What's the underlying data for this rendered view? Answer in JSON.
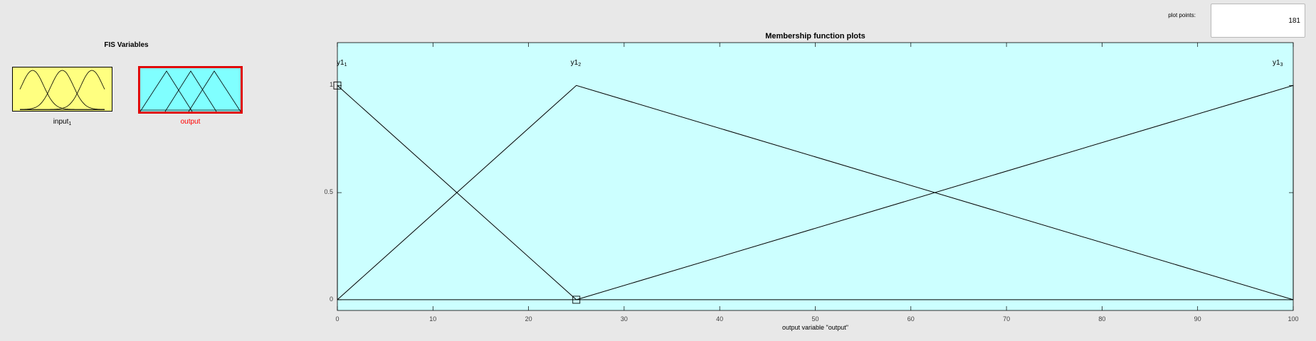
{
  "fis_panel": {
    "title": "FIS Variables",
    "variables": [
      {
        "name": "input",
        "subscript": "1",
        "color": "#ffff80",
        "selected": false,
        "icon": "gaussian-mf-icon"
      },
      {
        "name": "output",
        "subscript": "",
        "color": "#80ffff",
        "selected": true,
        "icon": "triangular-mf-icon"
      }
    ],
    "selected_color": "#ff0000"
  },
  "plot_points": {
    "label": "plot points:",
    "value": "181"
  },
  "chart_data": {
    "type": "line",
    "title": "Membership function plots",
    "xlabel": "output variable \"output\"",
    "ylabel": "",
    "xlim": [
      0,
      100
    ],
    "ylim": [
      -0.05,
      1.2
    ],
    "xticks": [
      0,
      10,
      20,
      30,
      40,
      50,
      60,
      70,
      80,
      90,
      100
    ],
    "yticks": [
      0,
      0.5,
      1
    ],
    "background": "#ccffff",
    "series": [
      {
        "name": "y1",
        "subscript": "1",
        "x": [
          0,
          0,
          25
        ],
        "y": [
          0,
          1,
          0
        ]
      },
      {
        "name": "y1",
        "subscript": "2",
        "x": [
          0,
          25,
          100
        ],
        "y": [
          0,
          1,
          0
        ]
      },
      {
        "name": "y1",
        "subscript": "3",
        "x": [
          25,
          100,
          100
        ],
        "y": [
          0,
          1,
          0
        ]
      }
    ],
    "selected_series": 0
  }
}
